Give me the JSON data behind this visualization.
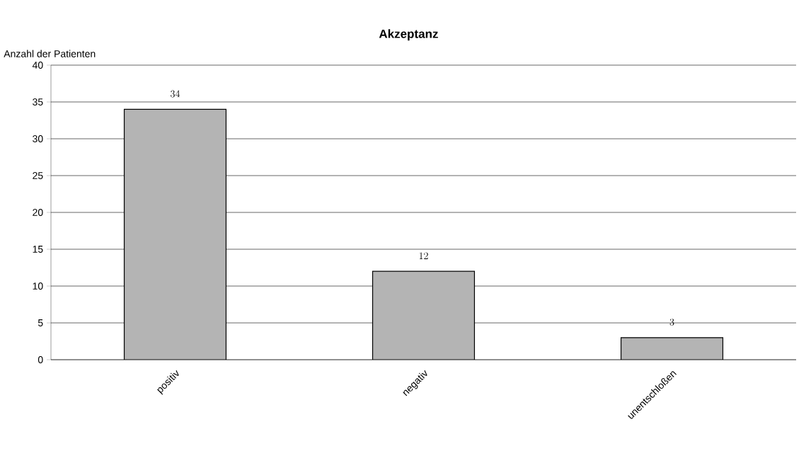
{
  "chart_data": {
    "type": "bar",
    "title": "Akzeptanz",
    "ylabel": "Anzahl der Patienten",
    "categories": [
      "positiv",
      "negativ",
      "unentschloßen"
    ],
    "values": [
      34,
      12,
      3
    ],
    "color": "#b4b4b4",
    "ylim": [
      0,
      40
    ],
    "yticks": [
      0,
      5,
      10,
      15,
      20,
      25,
      30,
      35,
      40
    ],
    "grid": "y",
    "data_labels": true
  }
}
